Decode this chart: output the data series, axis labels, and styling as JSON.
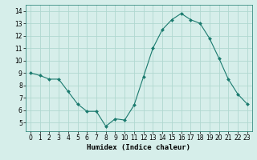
{
  "x": [
    0,
    1,
    2,
    3,
    4,
    5,
    6,
    7,
    8,
    9,
    10,
    11,
    12,
    13,
    14,
    15,
    16,
    17,
    18,
    19,
    20,
    21,
    22,
    23
  ],
  "y": [
    9.0,
    8.8,
    8.5,
    8.5,
    7.5,
    6.5,
    5.9,
    5.9,
    4.7,
    5.3,
    5.2,
    6.4,
    8.7,
    11.0,
    12.5,
    13.3,
    13.8,
    13.3,
    13.0,
    11.8,
    10.2,
    8.5,
    7.3,
    6.5
  ],
  "line_color": "#1a7a6e",
  "marker": "D",
  "marker_size": 2,
  "bg_color": "#d6eeea",
  "grid_color": "#b0d8d0",
  "xlabel": "Humidex (Indice chaleur)",
  "xlim": [
    -0.5,
    23.5
  ],
  "ylim": [
    4.3,
    14.5
  ],
  "yticks": [
    5,
    6,
    7,
    8,
    9,
    10,
    11,
    12,
    13,
    14
  ],
  "xticks": [
    0,
    1,
    2,
    3,
    4,
    5,
    6,
    7,
    8,
    9,
    10,
    11,
    12,
    13,
    14,
    15,
    16,
    17,
    18,
    19,
    20,
    21,
    22,
    23
  ],
  "tick_fontsize": 5.5,
  "xlabel_fontsize": 6.5
}
